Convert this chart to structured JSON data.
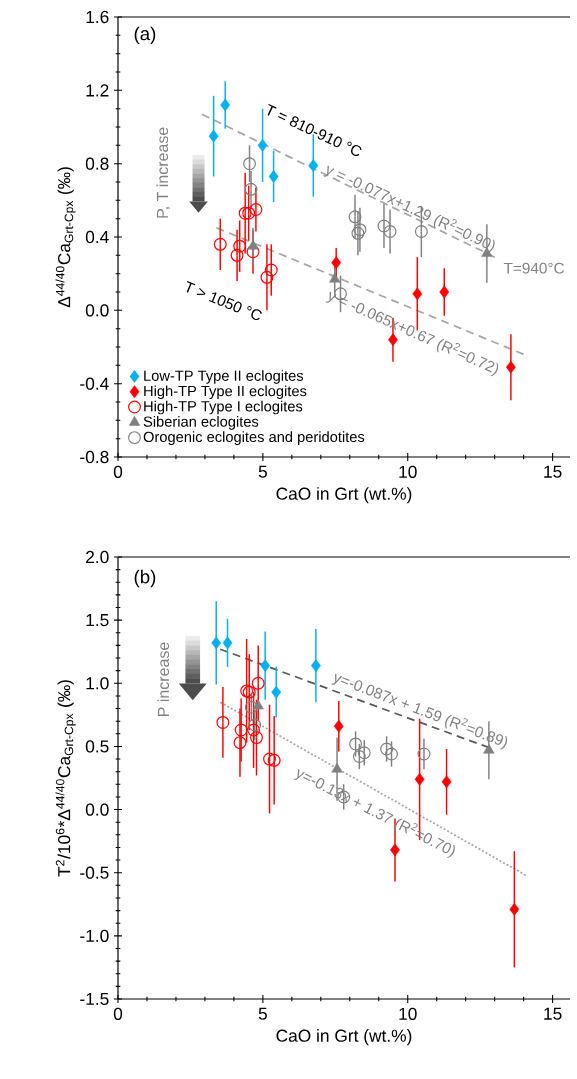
{
  "chart_data": [
    {
      "type": "scatter",
      "xlabel": "CaO in Grt (wt.%)",
      "ylabel": "Δ$^{44/40}$Ca$_{Grt-Cpx}$ (‰)",
      "xlim": [
        0,
        15.6
      ],
      "xticks": [
        0,
        5,
        10,
        15
      ],
      "ylim": [
        -0.8,
        1.6
      ],
      "yticks": [
        {
          "value": -0.8,
          "label": "-0.8"
        },
        {
          "value": -0.4,
          "label": "-0.4"
        },
        {
          "value": 0,
          "label": "0.0"
        },
        {
          "value": 0.4,
          "label": "0.4"
        },
        {
          "value": 0.8,
          "label": "0.8"
        },
        {
          "value": 1.2,
          "label": "1.2"
        },
        {
          "value": 1.6,
          "label": "1.6"
        }
      ],
      "legend": "bottom left",
      "series": [
        {
          "type": "line",
          "color": "#a6a6a6",
          "line_style": "dashed",
          "x": [
            2.9,
            13.0
          ],
          "values": [
            1.07,
            0.29
          ]
        },
        {
          "type": "line",
          "color": "#a6a6a6",
          "line_style": "dashed",
          "x": [
            3.4,
            14.0
          ],
          "values": [
            0.45,
            -0.24
          ]
        },
        {
          "name": "Low-TP Type II eclogites",
          "color": "#00b0f0",
          "marker": "diamond",
          "x": [
            3.3,
            3.7,
            4.99,
            5.37,
            6.74
          ],
          "values": [
            0.95,
            1.12,
            0.9,
            0.73,
            0.79
          ],
          "errors": [
            0.22,
            0.13,
            0.2,
            0.14,
            0.17
          ]
        },
        {
          "name": "High-TP Type II eclogites",
          "color": "#ff0000",
          "marker": "diamond",
          "x": [
            7.53,
            9.49,
            10.33,
            11.26,
            13.56
          ],
          "values": [
            0.26,
            -0.16,
            0.09,
            0.1,
            -0.31
          ],
          "errors": [
            0.08,
            0.12,
            0.2,
            0.13,
            0.18
          ]
        },
        {
          "name": "High-TP Type I eclogites",
          "color": "#ff0000",
          "marker": "circle",
          "x": [
            3.53,
            4.2,
            4.11,
            4.66,
            4.39,
            4.51,
            4.76,
            5.14,
            5.29
          ],
          "values": [
            0.36,
            0.35,
            0.3,
            0.32,
            0.53,
            0.53,
            0.55,
            0.18,
            0.22
          ],
          "errors": [
            0.14,
            0.14,
            0.14,
            0.12,
            0.22,
            0.15,
            0.12,
            0.18,
            0.14
          ]
        },
        {
          "name": "Siberian eclogites",
          "color": "#808080",
          "marker": "triangle",
          "x": [
            4.66,
            7.48,
            12.73
          ],
          "values": [
            0.35,
            0.17,
            0.31
          ],
          "errors": [
            0.1,
            0.1,
            0.16
          ]
        },
        {
          "name": "Orogenic eclogites and peridotites",
          "color": "#808080",
          "marker": "circle",
          "x": [
            4.54,
            4.59,
            7.68,
            8.18,
            8.35,
            8.28,
            9.18,
            9.39,
            10.47
          ],
          "values": [
            0.8,
            0.66,
            0.09,
            0.51,
            0.44,
            0.42,
            0.46,
            0.43,
            0.43
          ],
          "errors": [
            0.1,
            0.1,
            0.1,
            0.12,
            0.12,
            0.12,
            0.12,
            0.12,
            0.14
          ]
        }
      ],
      "annotations": [
        "(a)",
        "P, T increase",
        "T = 810-910 °C",
        "y = -0.077x+1.29 (R$^{2}$=0.90)",
        "T=940°C",
        "T > 1050 °C",
        "y = -0.065x+0.67 (R$^{2}$=0.72)"
      ]
    },
    {
      "type": "scatter",
      "xlabel": "CaO in Grt (wt.%)",
      "ylabel": "T$^{2}$/10$^{6}$*Δ$^{44/40}$Ca$_{Grt-Cpx}$ (‰)",
      "xlim": [
        0,
        15.6
      ],
      "xticks": [
        0,
        5,
        10,
        15
      ],
      "ylim": [
        -1.5,
        2.0
      ],
      "yticks": [
        {
          "value": -1.5,
          "label": "-1.5"
        },
        {
          "value": -1.0,
          "label": "-1.0"
        },
        {
          "value": -0.5,
          "label": "-0.5"
        },
        {
          "value": 0,
          "label": "0.0"
        },
        {
          "value": 0.5,
          "label": "0.5"
        },
        {
          "value": 1.0,
          "label": "1.0"
        },
        {
          "value": 1.5,
          "label": "1.5"
        },
        {
          "value": 2.0,
          "label": "2.0"
        }
      ],
      "series": [
        {
          "type": "line",
          "color": "#595959",
          "line_style": "dashed",
          "x": [
            3.53,
            12.81
          ],
          "values": [
            1.27,
            0.49
          ]
        },
        {
          "type": "line",
          "color": "#a6a6a6",
          "line_style": "dotted",
          "x": [
            3.53,
            14.07
          ],
          "values": [
            0.85,
            -0.52
          ]
        },
        {
          "color": "#00b0f0",
          "marker": "diamond",
          "x": [
            3.39,
            3.78,
            5.08,
            5.46,
            6.83
          ],
          "values": [
            1.32,
            1.32,
            1.14,
            0.93,
            1.14
          ],
          "errors": [
            0.33,
            0.19,
            0.27,
            0.2,
            0.29
          ]
        },
        {
          "color": "#ff0000",
          "marker": "diamond",
          "x": [
            7.62,
            9.56,
            10.41,
            11.34,
            13.68
          ],
          "values": [
            0.66,
            -0.32,
            0.24,
            0.22,
            -0.79
          ],
          "errors": [
            0.2,
            0.25,
            0.48,
            0.26,
            0.46
          ]
        },
        {
          "color": "#ff0000",
          "marker": "circle",
          "x": [
            3.62,
            4.25,
            4.21,
            4.44,
            4.53,
            4.84,
            4.68,
            4.78,
            5.23,
            5.39
          ],
          "values": [
            0.69,
            0.63,
            0.53,
            0.94,
            0.93,
            1.0,
            0.63,
            0.57,
            0.4,
            0.39
          ],
          "errors": [
            0.28,
            0.25,
            0.27,
            0.41,
            0.3,
            0.3,
            0.3,
            0.3,
            0.43,
            0.35
          ]
        },
        {
          "color": "#808080",
          "marker": "triangle",
          "x": [
            4.84,
            7.56,
            12.8
          ],
          "values": [
            0.82,
            0.32,
            0.47
          ],
          "errors": [
            null,
            0.25,
            0.23
          ]
        },
        {
          "color": "#808080",
          "marker": "circle",
          "x": [
            4.6,
            4.72,
            7.79,
            8.2,
            8.5,
            8.33,
            9.27,
            9.44,
            10.56
          ],
          "values": [
            0.81,
            0.67,
            0.1,
            0.52,
            0.45,
            0.42,
            0.48,
            0.44,
            0.44
          ],
          "errors": [
            0.1,
            0.12,
            0.1,
            0.1,
            0.1,
            0.1,
            0.1,
            0.1,
            0.12
          ]
        }
      ],
      "annotations": [
        "(b)",
        "P increase",
        "y=-0.087x + 1.59 (R$^{2}$=0.89)",
        "y=-0.13x + 1.37 (R$^{2}$=0.70)"
      ]
    }
  ]
}
